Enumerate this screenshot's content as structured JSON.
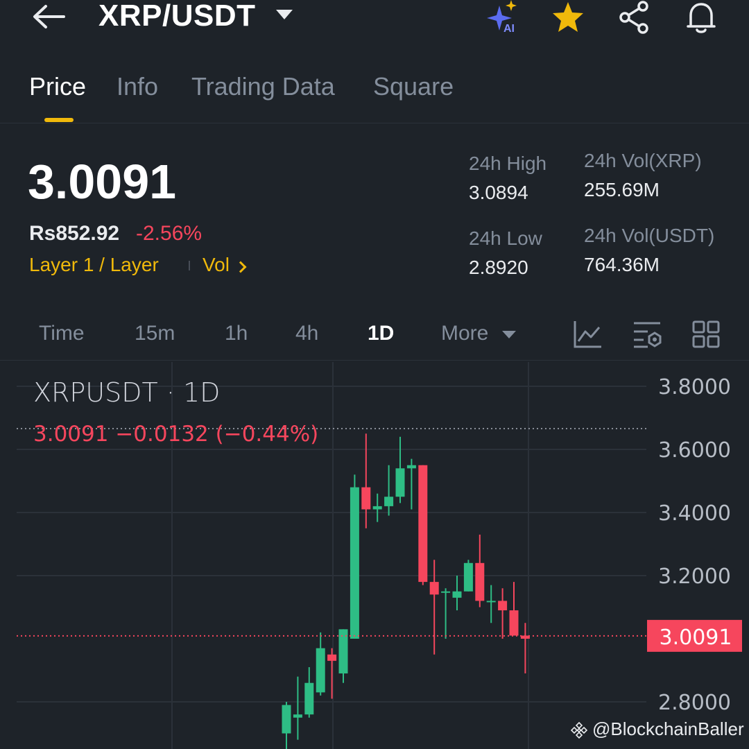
{
  "header": {
    "pair": "XRP/USDT",
    "icons": [
      "back-arrow-icon",
      "ai-sparkle-icon",
      "star-icon",
      "share-icon",
      "bell-icon"
    ],
    "ai_label": "AI"
  },
  "tabs": [
    {
      "label": "Price",
      "active": true
    },
    {
      "label": "Info",
      "active": false
    },
    {
      "label": "Trading Data",
      "active": false
    },
    {
      "label": "Square",
      "active": false
    }
  ],
  "price": {
    "last": "3.0091",
    "fiat": "Rs852.92",
    "change_pct": "-2.56%",
    "tag_layer": "Layer 1 / Layer",
    "tag_vol": "Vol"
  },
  "stats": {
    "high_label": "24h High",
    "high_value": "3.0894",
    "low_label": "24h Low",
    "low_value": "2.8920",
    "vol_base_label": "24h Vol(XRP)",
    "vol_base_value": "255.69M",
    "vol_quote_label": "24h Vol(USDT)",
    "vol_quote_value": "764.36M"
  },
  "intervals": {
    "items": [
      "Time",
      "15m",
      "1h",
      "4h",
      "1D"
    ],
    "active": "1D",
    "more_label": "More",
    "icons": [
      "indicator-chart-icon",
      "chart-settings-icon",
      "layout-grid-icon"
    ]
  },
  "chart": {
    "title": "XRPUSDT · 1D",
    "ohlc_line": "3.0091  −0.0132 (−0.44%)",
    "price_tag": "3.0091",
    "colors": {
      "up": "#2ebd85",
      "down": "#f6465d",
      "grid": "#2b3139",
      "axis_text": "#b7bdc6"
    },
    "watermark": "@BlockchainBaller"
  },
  "chart_data": {
    "type": "candlestick",
    "y_ticks": [
      "3.8000",
      "3.6000",
      "3.4000",
      "3.2000",
      "2.8000"
    ],
    "ylim": [
      2.74,
      3.82
    ],
    "last_price": 3.0091,
    "candles": [
      {
        "o": 2.7,
        "h": 2.8,
        "l": 2.62,
        "c": 2.79
      },
      {
        "o": 2.75,
        "h": 2.88,
        "l": 2.68,
        "c": 2.76
      },
      {
        "o": 2.76,
        "h": 2.91,
        "l": 2.75,
        "c": 2.86
      },
      {
        "o": 2.83,
        "h": 3.02,
        "l": 2.82,
        "c": 2.97
      },
      {
        "o": 2.95,
        "h": 2.97,
        "l": 2.81,
        "c": 2.93
      },
      {
        "o": 2.89,
        "h": 3.03,
        "l": 2.86,
        "c": 3.03
      },
      {
        "o": 3.0,
        "h": 3.52,
        "l": 3.0,
        "c": 3.48
      },
      {
        "o": 3.48,
        "h": 3.65,
        "l": 3.35,
        "c": 3.41
      },
      {
        "o": 3.41,
        "h": 3.46,
        "l": 3.37,
        "c": 3.42
      },
      {
        "o": 3.42,
        "h": 3.55,
        "l": 3.39,
        "c": 3.45
      },
      {
        "o": 3.45,
        "h": 3.64,
        "l": 3.43,
        "c": 3.54
      },
      {
        "o": 3.54,
        "h": 3.57,
        "l": 3.41,
        "c": 3.55
      },
      {
        "o": 3.55,
        "h": 3.55,
        "l": 3.17,
        "c": 3.18
      },
      {
        "o": 3.18,
        "h": 3.25,
        "l": 2.95,
        "c": 3.14
      },
      {
        "o": 3.15,
        "h": 3.16,
        "l": 3.0,
        "c": 3.15
      },
      {
        "o": 3.13,
        "h": 3.2,
        "l": 3.09,
        "c": 3.15
      },
      {
        "o": 3.15,
        "h": 3.25,
        "l": 3.15,
        "c": 3.24
      },
      {
        "o": 3.24,
        "h": 3.33,
        "l": 3.1,
        "c": 3.12
      },
      {
        "o": 3.12,
        "h": 3.17,
        "l": 3.05,
        "c": 3.12
      },
      {
        "o": 3.12,
        "h": 3.16,
        "l": 3.0,
        "c": 3.09
      },
      {
        "o": 3.09,
        "h": 3.18,
        "l": 3.01,
        "c": 3.01
      },
      {
        "o": 3.01,
        "h": 3.05,
        "l": 2.89,
        "c": 3.0
      }
    ]
  }
}
